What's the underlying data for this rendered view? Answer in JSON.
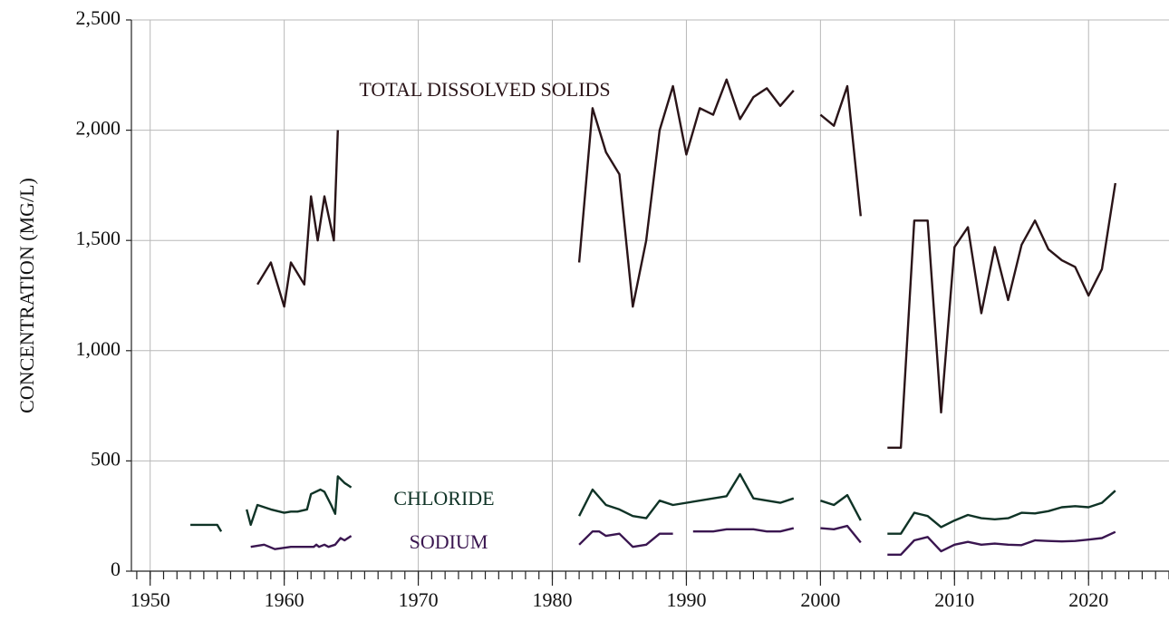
{
  "chart_data": {
    "type": "line",
    "y_label": "CONCENTRATION (MG/L)",
    "xlim": [
      1948.6,
      2026
    ],
    "xticks": [
      1950,
      1960,
      1970,
      1980,
      1990,
      2000,
      2010,
      2020
    ],
    "ylim": [
      0,
      2500
    ],
    "yticks": [
      0,
      500,
      {
        "value": 1000,
        "label": "1,000"
      },
      {
        "value": 1500,
        "label": "1,500"
      },
      {
        "value": 2000,
        "label": "2,000"
      },
      {
        "value": 2500,
        "label": "2,500"
      }
    ],
    "grid": true,
    "series": [
      {
        "name": "TOTAL DISSOLVED SOLIDS",
        "color": "#2a1418",
        "x": [
          1958,
          1959,
          1960,
          1960.5,
          1961.5,
          1962,
          1962.5,
          1963,
          1963.7,
          1964,
          null,
          1982,
          1983,
          1983.5,
          1984,
          1985,
          1986,
          1987,
          1988,
          1989,
          1990,
          1991,
          1992,
          1993,
          1994,
          1995,
          1996,
          1997,
          1998,
          null,
          2000,
          2001,
          2002,
          2003,
          null,
          2005,
          2006,
          2007,
          2008,
          2009,
          2010,
          2011,
          2012,
          2013,
          2014,
          2015,
          2016,
          2017,
          2018,
          2019,
          2020,
          2021,
          2022
        ],
        "values": [
          1300,
          1400,
          1200,
          1400,
          1300,
          1700,
          1500,
          1700,
          1500,
          2000,
          null,
          1400,
          2100,
          2000,
          1900,
          1800,
          1200,
          1500,
          2000,
          2200,
          1890,
          2100,
          2070,
          2230,
          2050,
          2150,
          2190,
          2110,
          2180,
          null,
          2070,
          2020,
          2200,
          1610,
          null,
          560,
          560,
          1590,
          1590,
          720,
          1470,
          1560,
          1170,
          1470,
          1230,
          1480,
          1590,
          1460,
          1410,
          1380,
          1250,
          1370,
          1760
        ]
      },
      {
        "name": "CHLORIDE",
        "color": "#0f3326",
        "x": [
          1953,
          1955,
          1955.3,
          null,
          1957.2,
          1957.5,
          1958,
          1959,
          1960,
          1960.5,
          1961,
          1961.7,
          1962,
          1962.7,
          1963,
          1963.5,
          1963.8,
          1964,
          1964.5,
          1965,
          null,
          1982,
          1983,
          1984,
          1985,
          1986,
          1987,
          1988,
          1989,
          1993,
          1994,
          1995,
          1997,
          1998,
          null,
          2000,
          2001,
          2002,
          2003,
          null,
          2005,
          2006,
          2007,
          2008,
          2009,
          2010,
          2011,
          2012,
          2013,
          2014,
          2015,
          2016,
          2017,
          2018,
          2019,
          2020,
          2021,
          2022
        ],
        "values": [
          210,
          210,
          180,
          null,
          280,
          210,
          300,
          280,
          265,
          270,
          270,
          280,
          350,
          370,
          360,
          300,
          260,
          430,
          400,
          380,
          null,
          250,
          370,
          300,
          280,
          250,
          240,
          320,
          300,
          340,
          440,
          330,
          310,
          330,
          null,
          320,
          300,
          345,
          230,
          null,
          170,
          170,
          265,
          250,
          200,
          230,
          255,
          240,
          235,
          240,
          265,
          262,
          272,
          290,
          295,
          290,
          310,
          365
        ]
      },
      {
        "name": "SODIUM",
        "color": "#3a1650",
        "x": [
          1957.5,
          1958.5,
          1959.3,
          1960.5,
          1961.5,
          1962.2,
          1962.4,
          1962.6,
          1963,
          1963.3,
          1963.8,
          1964.2,
          1964.5,
          1965,
          null,
          1982,
          1983,
          1983.5,
          1984,
          1985,
          1986,
          1987,
          1988,
          1989,
          null,
          1990.5,
          1992,
          1993,
          1995,
          1996,
          1997,
          1998,
          null,
          2000,
          2001,
          2002,
          2003,
          null,
          2005,
          2006,
          2007,
          2008,
          2009,
          2010,
          2011,
          2012,
          2013,
          2014,
          2015,
          2016,
          2017,
          2018,
          2019,
          2020,
          2021,
          2022
        ],
        "values": [
          110,
          120,
          100,
          110,
          110,
          110,
          120,
          110,
          120,
          110,
          120,
          150,
          140,
          160,
          null,
          120,
          180,
          180,
          160,
          170,
          110,
          120,
          170,
          170,
          null,
          180,
          180,
          190,
          190,
          180,
          180,
          195,
          null,
          195,
          190,
          205,
          130,
          null,
          75,
          75,
          140,
          155,
          90,
          120,
          133,
          120,
          125,
          120,
          118,
          140,
          137,
          135,
          137,
          143,
          150,
          178
        ]
      }
    ]
  }
}
